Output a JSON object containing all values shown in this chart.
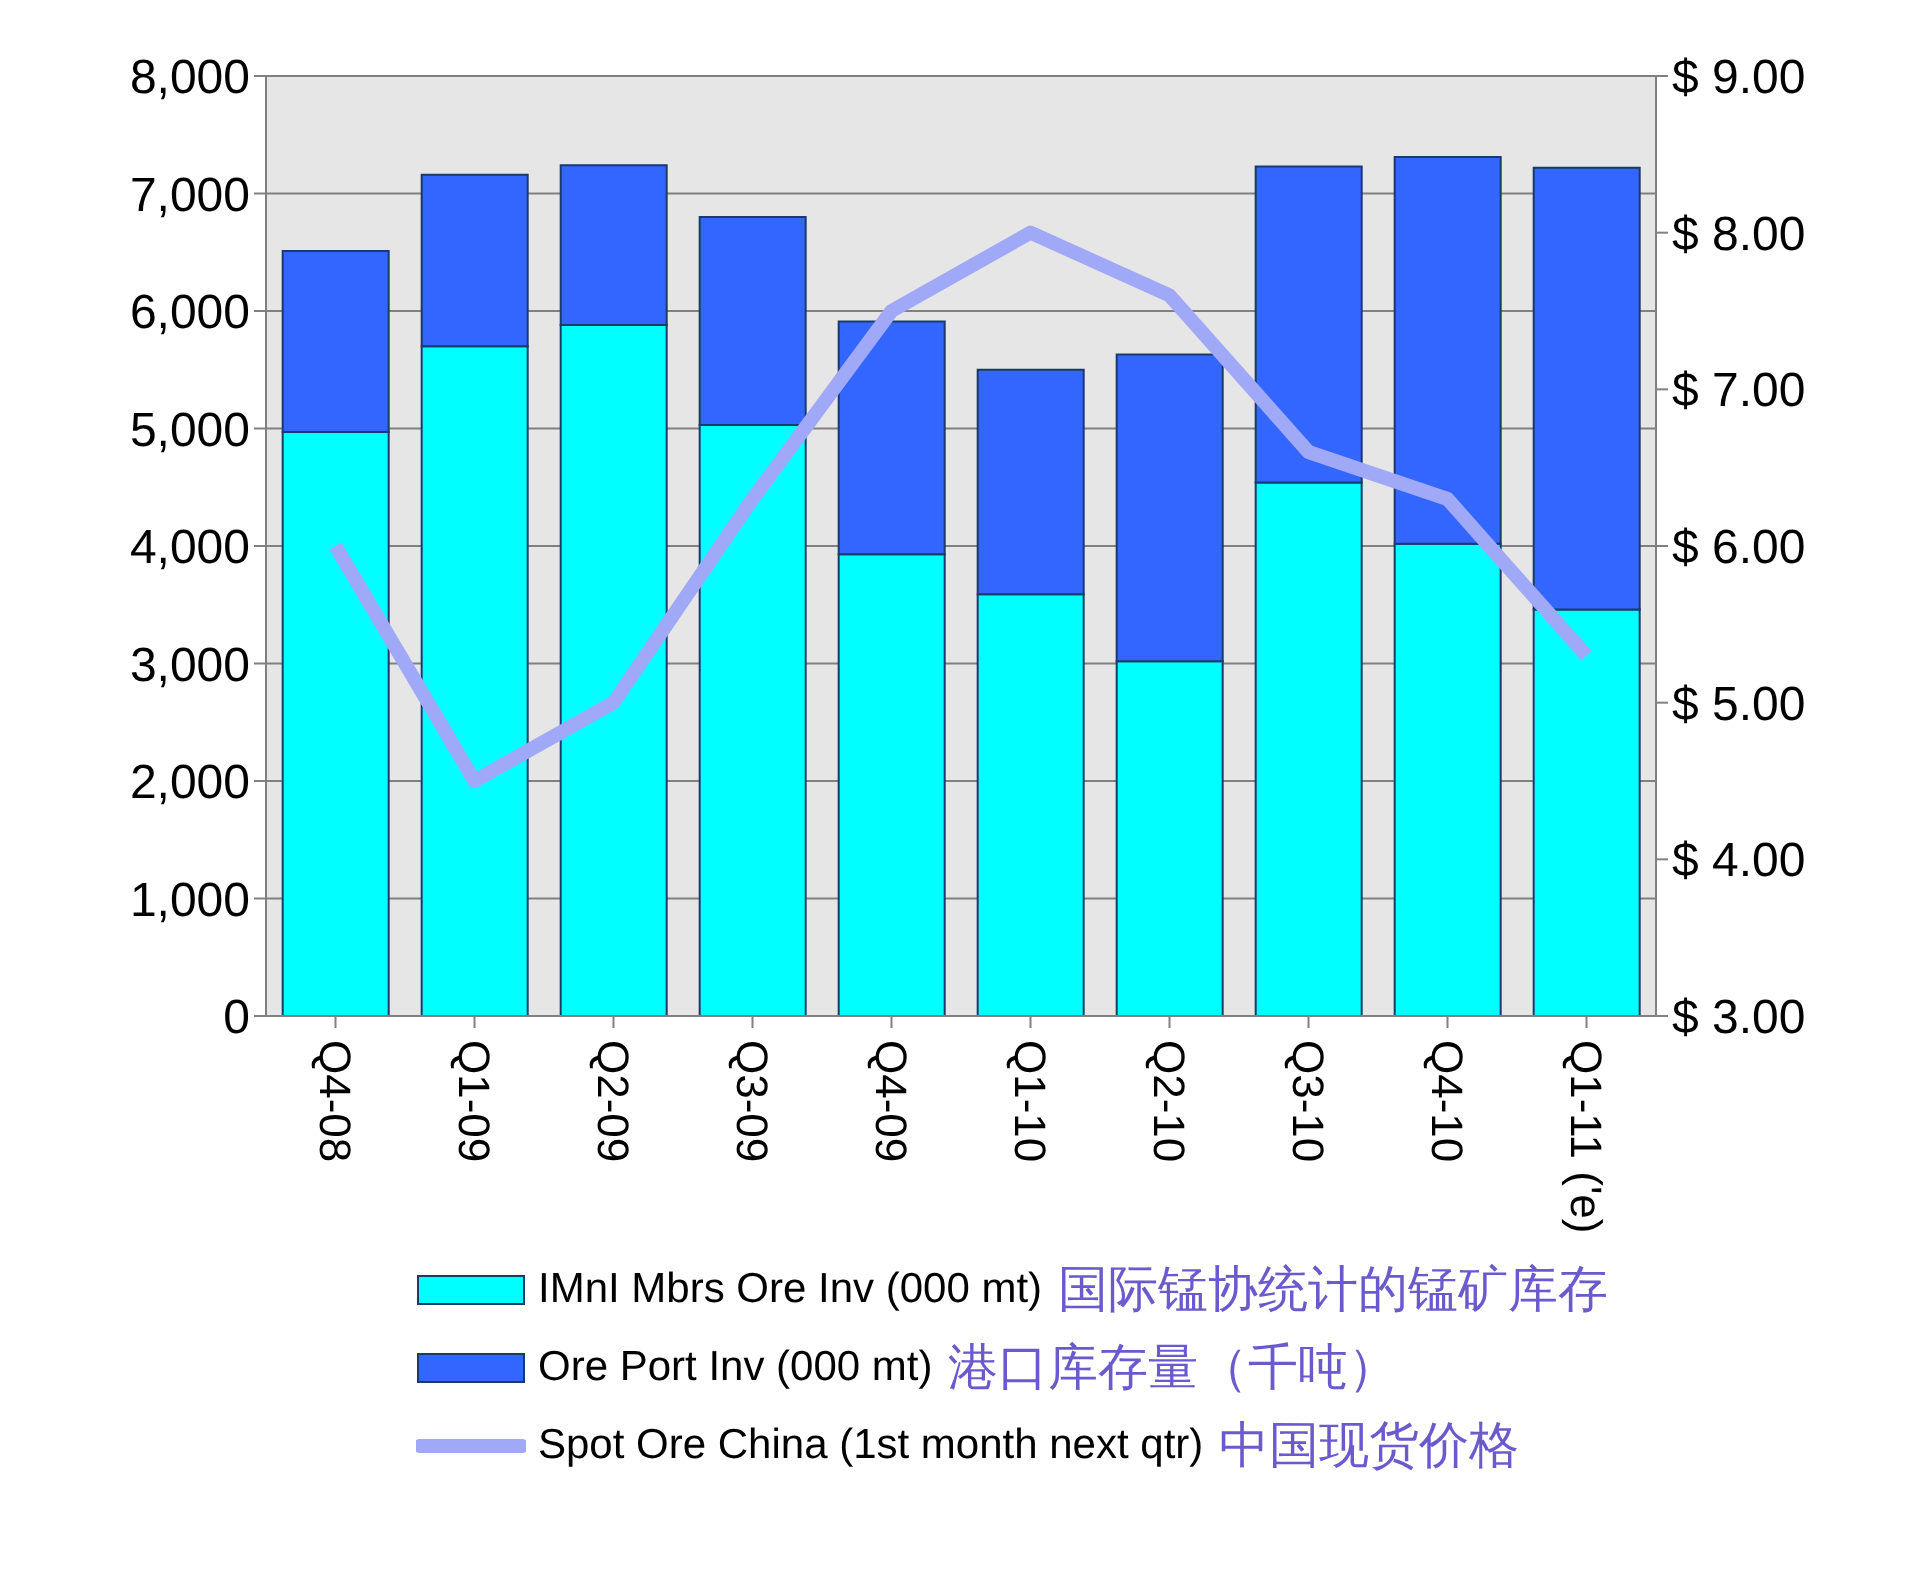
{
  "chart_data": {
    "type": "bar",
    "stacked": true,
    "categories": [
      "Q4-08",
      "Q1-09",
      "Q2-09",
      "Q3-09",
      "Q4-09",
      "Q1-10",
      "Q2-10",
      "Q3-10",
      "Q4-10",
      "Q1-11 ('e)"
    ],
    "series": [
      {
        "name": "IMnI Mbrs Ore Inv (000 mt)",
        "color": "#00ffff",
        "values": [
          4970,
          5700,
          5880,
          5030,
          3930,
          3590,
          3020,
          4540,
          4020,
          3460
        ]
      },
      {
        "name": "Ore Port Inv (000 mt)",
        "color": "#3366ff",
        "values": [
          1540,
          1460,
          1360,
          1770,
          1980,
          1910,
          2610,
          2690,
          3290,
          3760
        ]
      },
      {
        "name": "Spot Ore China (1st month next qtr)",
        "color": "#a0a8f8",
        "type": "line",
        "axis": "y2",
        "values": [
          6.0,
          4.5,
          5.0,
          6.3,
          7.5,
          8.0,
          7.6,
          6.6,
          6.3,
          5.3
        ]
      }
    ],
    "ylim": [
      0,
      8000
    ],
    "yticks": [
      0,
      {
        "value": 1000,
        "label": "1,000"
      },
      {
        "value": 2000,
        "label": "2,000"
      },
      {
        "value": 3000,
        "label": "3,000"
      },
      {
        "value": 4000,
        "label": "4,000"
      },
      {
        "value": 5000,
        "label": "5,000"
      },
      {
        "value": 6000,
        "label": "6,000"
      },
      {
        "value": 7000,
        "label": "7,000"
      },
      {
        "value": 8000,
        "label": "8,000"
      }
    ],
    "y2lim": [
      3,
      9
    ],
    "y2ticks": [
      {
        "value": 3,
        "label": "$ 3.00"
      },
      {
        "value": 4,
        "label": "$ 4.00"
      },
      {
        "value": 5,
        "label": "$ 5.00"
      },
      {
        "value": 6,
        "label": "$ 6.00"
      },
      {
        "value": 7,
        "label": "$ 7.00"
      },
      {
        "value": 8,
        "label": "$ 8.00"
      },
      {
        "value": 9,
        "label": "$ 9.00"
      }
    ],
    "grid": "y",
    "legend": "bottom",
    "marker": "none",
    "annotations": [
      "国际锰协统计的锰矿库存",
      "港口库存量（千吨）",
      "中国现货价格"
    ]
  }
}
